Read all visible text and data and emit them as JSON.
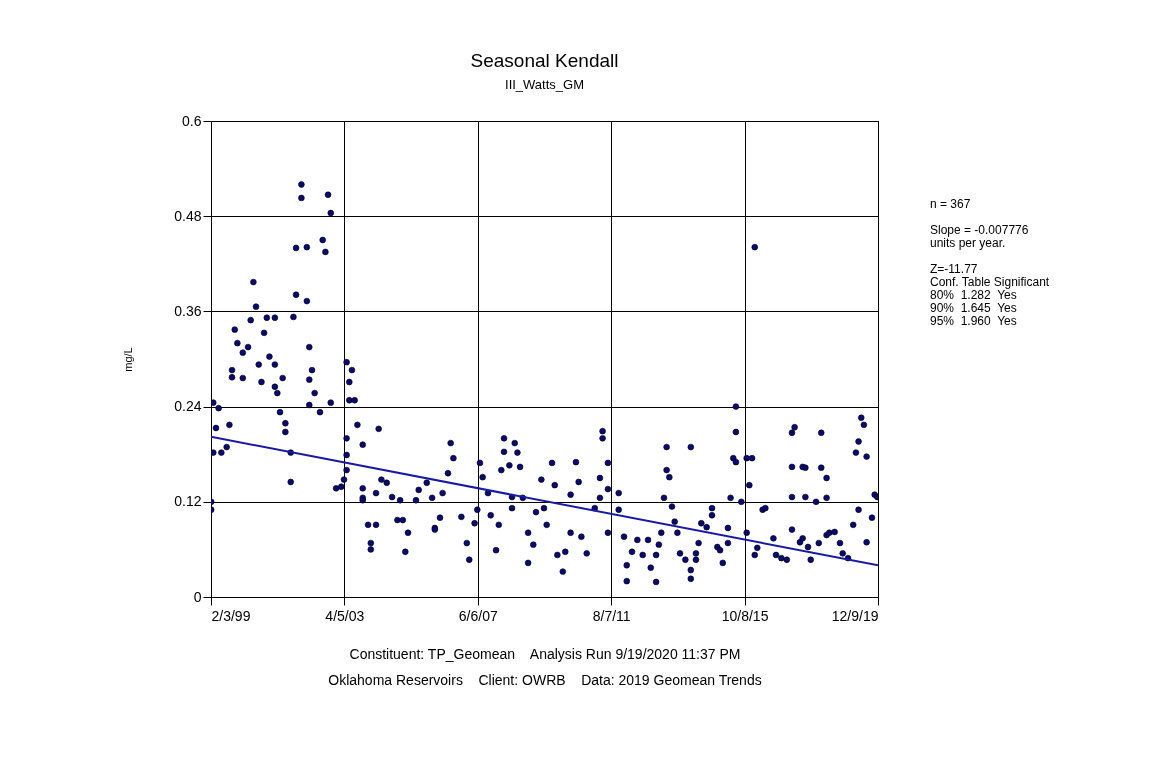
{
  "chart_data": {
    "type": "scatter",
    "title": "Seasonal Kendall",
    "subtitle": "III_Watts_GM",
    "ylabel": "mg/L",
    "xlim": [
      "1999-02-03",
      "2019-12-09"
    ],
    "xticks": [
      {
        "value": "1999-02-03",
        "label": "2/3/99"
      },
      {
        "value": "2003-04-05",
        "label": "4/5/03"
      },
      {
        "value": "2007-06-06",
        "label": "6/6/07"
      },
      {
        "value": "2011-08-07",
        "label": "8/7/11"
      },
      {
        "value": "2015-10-08",
        "label": "10/8/15"
      },
      {
        "value": "2019-12-09",
        "label": "12/9/19"
      }
    ],
    "ylim": [
      0,
      0.6
    ],
    "yticks": [
      0,
      0.12,
      0.24,
      0.36,
      0.48,
      0.6
    ],
    "grid": true,
    "series": [
      {
        "color": "#0a0a6e",
        "marker": "circle",
        "x": [
          "1999-03",
          "1999-05",
          "1999-04",
          "1999-03",
          "1999-06",
          "1999-08",
          "1999-09",
          "1999-02-05",
          "1999-02-05",
          "1999-10",
          "1999-10",
          "1999-11",
          "1999-12",
          "2000-02",
          "2000-02",
          "2000-04",
          "2000-05",
          "2000-06",
          "2000-07",
          "2000-08",
          "2000-09",
          "2000-10",
          "2000-11",
          "2000-12",
          "2001-02",
          "2001-02",
          "2001-02",
          "2001-03",
          "2001-04",
          "2001-05",
          "2001-06",
          "2001-06",
          "2001-08",
          "2001-08",
          "2001-09",
          "2001-10",
          "2001-10",
          "2001-12",
          "2001-12",
          "2002-02",
          "2002-02",
          "2002-03",
          "2002-04",
          "2002-03",
          "2002-03",
          "2002-05",
          "2002-07",
          "2002-08",
          "2002-09",
          "2002-10",
          "2002-11",
          "2002-11",
          "2003-05",
          "2003-07",
          "2003-06",
          "2003-06",
          "2003-08",
          "2003-05",
          "2003-05",
          "2003-05",
          "2003-04",
          "2003-01",
          "2003-03",
          "2003-09",
          "2003-11",
          "2003-11",
          "2003-11",
          "2003-11",
          "2004-01",
          "2004-04",
          "2004-02",
          "2004-02",
          "2004-05",
          "2004-04",
          "2004-06",
          "2004-08",
          "2004-10",
          "2005-01",
          "2004-12",
          "2005-02",
          "2005-04",
          "2005-03",
          "2005-07",
          "2005-08",
          "2005-11",
          "2006-01",
          "2006-02",
          "2006-02",
          "2006-04",
          "2006-05",
          "2006-07",
          "2006-08",
          "2006-09",
          "2006-12",
          "2007-02",
          "2007-03",
          "2007-06",
          "2007-07",
          "2007-08",
          "2007-10",
          "2007-05",
          "2007-11",
          "2008-01",
          "2008-02",
          "2008-03",
          "2008-04",
          "2008-04",
          "2008-06",
          "2008-08",
          "2008-09",
          "2008-10",
          "2008-07",
          "2008-07",
          "2008-11",
          "2009-01",
          "2009-01",
          "2009-03",
          "2009-06",
          "2009-04",
          "2009-07",
          "2009-08",
          "2009-10",
          "2009-11",
          "2009-12",
          "2010-02",
          "2010-03",
          "2010-05",
          "2010-05",
          "2010-07",
          "2010-08",
          "2010-09",
          "2010-11",
          "2011-02",
          "2011-04",
          "2011-05",
          "2011-05",
          "2011-07",
          "2011-07",
          "2011-04",
          "2011-07",
          "2011-11",
          "2011-11",
          "2012-01",
          "2012-02",
          "2012-02",
          "2012-04",
          "2012-06",
          "2012-08",
          "2012-10",
          "2012-11",
          "2013-01",
          "2013-01",
          "2013-05",
          "2013-05",
          "2013-04",
          "2013-03",
          "2013-02",
          "2013-06",
          "2013-07",
          "2013-08",
          "2013-09",
          "2013-10",
          "2013-12",
          "2014-02",
          "2014-02",
          "2014-02",
          "2014-04",
          "2014-05",
          "2014-04",
          "2014-06",
          "2014-08",
          "2014-10",
          "2014-10",
          "2014-12",
          "2015-01",
          "2015-02",
          "2015-04",
          "2015-04",
          "2015-05",
          "2015-06",
          "2015-07",
          "2015-07",
          "2015-07",
          "2015-09",
          "2015-11",
          "2015-12",
          "2016-01",
          "2015-11",
          "2016-02",
          "2016-03",
          "2016-02",
          "2016-05",
          "2016-06",
          "2016-09",
          "2016-10",
          "2016-12",
          "2017-02",
          "2017-04",
          "2017-04",
          "2017-04",
          "2017-05",
          "2017-04",
          "2017-07",
          "2017-08",
          "2017-08",
          "2017-09",
          "2017-09",
          "2017-10",
          "2017-11",
          "2018-01",
          "2018-02",
          "2018-03",
          "2018-03",
          "2018-05",
          "2018-05",
          "2018-05",
          "2018-06",
          "2018-08",
          "2018-10",
          "2018-11",
          "2019-01",
          "2019-03",
          "2019-05",
          "2019-04",
          "2019-05",
          "2019-06",
          "2019-07",
          "2019-08",
          "2019-08",
          "2019-10",
          "2019-11",
          "2019-12"
        ],
        "values": [
          0.245,
          0.238,
          0.213,
          0.182,
          0.182,
          0.189,
          0.217,
          0.12,
          0.11,
          0.286,
          0.277,
          0.337,
          0.32,
          0.308,
          0.276,
          0.315,
          0.349,
          0.397,
          0.366,
          0.293,
          0.271,
          0.333,
          0.352,
          0.303,
          0.265,
          0.352,
          0.293,
          0.257,
          0.233,
          0.276,
          0.219,
          0.208,
          0.182,
          0.145,
          0.353,
          0.381,
          0.44,
          0.52,
          0.503,
          0.441,
          0.373,
          0.315,
          0.286,
          0.274,
          0.242,
          0.257,
          0.233,
          0.45,
          0.435,
          0.507,
          0.484,
          0.245,
          0.296,
          0.286,
          0.271,
          0.248,
          0.248,
          0.2,
          0.179,
          0.16,
          0.148,
          0.137,
          0.139,
          0.217,
          0.192,
          0.137,
          0.125,
          0.122,
          0.091,
          0.091,
          0.068,
          0.06,
          0.212,
          0.131,
          0.148,
          0.144,
          0.126,
          0.122,
          0.097,
          0.097,
          0.081,
          0.057,
          0.122,
          0.135,
          0.144,
          0.125,
          0.087,
          0.085,
          0.1,
          0.131,
          0.156,
          0.194,
          0.175,
          0.101,
          0.068,
          0.047,
          0.11,
          0.169,
          0.151,
          0.131,
          0.093,
          0.103,
          0.059,
          0.091,
          0.16,
          0.2,
          0.183,
          0.166,
          0.194,
          0.182,
          0.164,
          0.126,
          0.112,
          0.125,
          0.081,
          0.043,
          0.066,
          0.148,
          0.107,
          0.112,
          0.091,
          0.169,
          0.141,
          0.053,
          0.032,
          0.057,
          0.081,
          0.129,
          0.17,
          0.145,
          0.076,
          0.055,
          0.112,
          0.125,
          0.2,
          0.209,
          0.169,
          0.136,
          0.15,
          0.081,
          0.131,
          0.11,
          0.076,
          0.04,
          0.02,
          0.057,
          0.072,
          0.053,
          0.072,
          0.037,
          0.019,
          0.053,
          0.189,
          0.16,
          0.125,
          0.081,
          0.066,
          0.151,
          0.114,
          0.095,
          0.081,
          0.055,
          0.047,
          0.034,
          0.023,
          0.189,
          0.047,
          0.068,
          0.055,
          0.093,
          0.088,
          0.112,
          0.103,
          0.063,
          0.059,
          0.043,
          0.068,
          0.087,
          0.125,
          0.175,
          0.17,
          0.208,
          0.24,
          0.12,
          0.175,
          0.141,
          0.175,
          0.081,
          0.053,
          0.062,
          0.441,
          0.11,
          0.112,
          0.074,
          0.053,
          0.049,
          0.047,
          0.126,
          0.164,
          0.207,
          0.214,
          0.085,
          0.069,
          0.074,
          0.164,
          0.126,
          0.163,
          0.063,
          0.047,
          0.12,
          0.068,
          0.207,
          0.163,
          0.15,
          0.125,
          0.078,
          0.081,
          0.082,
          0.068,
          0.055,
          0.049,
          0.091,
          0.11,
          0.182,
          0.196,
          0.226,
          0.217,
          0.177,
          0.069,
          0.1,
          0.129,
          0.126
        ]
      },
      {
        "type": "line",
        "color": "#1a1aa0",
        "x": [
          "1999-02-03",
          "2019-12-09"
        ],
        "values": [
          0.202,
          0.04
        ]
      }
    ],
    "annotations": [
      "n = 367",
      "Slope = -0.007776",
      "units per year.",
      "Z=-11.77",
      "Conf. Table Significant",
      "80%  1.282  Yes",
      "90%  1.645  Yes",
      "95%  1.960  Yes",
      "Constituent: TP_Geomean    Analysis Run 9/19/2020 11:37 PM",
      "Oklahoma Reservoirs    Client: OWRB    Data: 2019 Geomean Trends"
    ]
  }
}
